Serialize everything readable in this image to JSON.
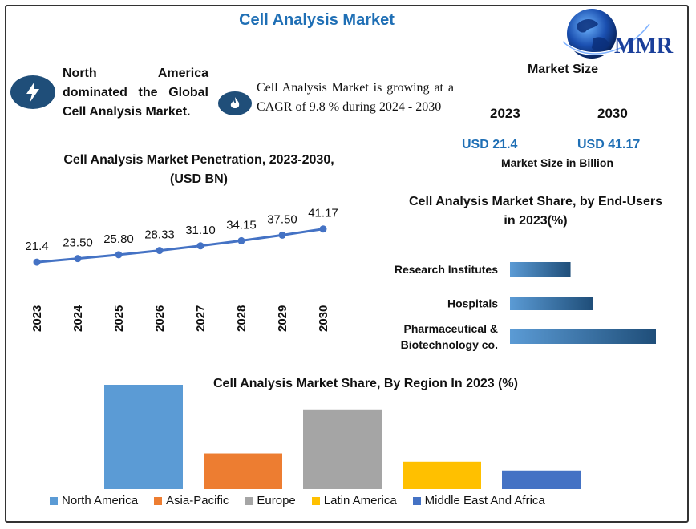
{
  "header": {
    "title": "Cell Analysis Market",
    "logo_text": "MMR"
  },
  "highlights": {
    "region_text": "North America dominated the Global Cell Analysis Market.",
    "cagr_text": "Cell Analysis Market is growing at a CAGR of 9.8 % during 2024 - 2030",
    "region_icon": "lightning-icon",
    "cagr_icon": "flame-icon"
  },
  "market_size": {
    "title": "Market Size",
    "year_a": "2023",
    "year_b": "2030",
    "value_a": "USD 21.4",
    "value_b": "USD 41.17",
    "subtitle": "Market Size in Billion"
  },
  "colors": {
    "accent": "#1f6fb5",
    "icon_bg": "#1f4e79",
    "line": "#4472c4"
  },
  "chart_data": [
    {
      "type": "line",
      "title": "Cell Analysis Market  Penetration, 2023-2030,(USD BN)",
      "x": [
        "2023",
        "2024",
        "2025",
        "2026",
        "2027",
        "2028",
        "2029",
        "2030"
      ],
      "values": [
        21.4,
        23.5,
        25.8,
        28.33,
        31.1,
        34.15,
        37.5,
        41.17
      ],
      "data_labels": [
        "21.4",
        "23.50",
        "25.80",
        "28.33",
        "31.10",
        "34.15",
        "37.50",
        "41.17"
      ],
      "grid": false
    },
    {
      "type": "bar",
      "orientation": "horizontal",
      "title": "Cell Analysis Market Share, by End-Users in 2023(%)",
      "categories": [
        "Research Institutes",
        "Hospitals",
        "Pharmaceutical & Biotechnology co."
      ],
      "values": [
        22,
        30,
        53
      ],
      "grid": false
    },
    {
      "type": "bar",
      "title": "Cell Analysis Market Share, By Region In 2023 (%)",
      "categories": [
        "North America",
        "Asia-Pacific",
        "Europe",
        "Latin America",
        "Middle East And Africa"
      ],
      "values": [
        38,
        13,
        29,
        10,
        6.5
      ],
      "colors": [
        "#5b9bd5",
        "#ed7d31",
        "#a5a5a5",
        "#ffc000",
        "#4472c4"
      ],
      "legend": "bottom",
      "grid": false
    }
  ]
}
